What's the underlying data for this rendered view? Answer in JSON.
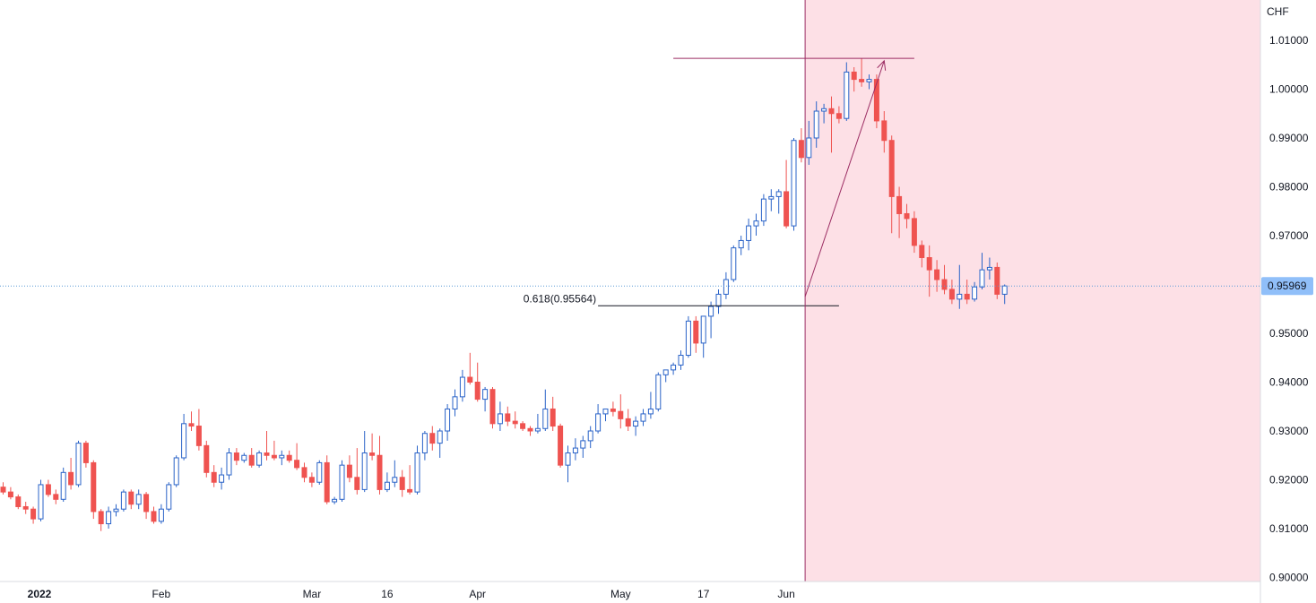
{
  "chart_data": {
    "type": "candlestick",
    "currency_label": "CHF",
    "y_range": [
      0.9,
      1.013
    ],
    "y_ticks": [
      "1.01000",
      "1.00000",
      "0.99000",
      "0.98000",
      "0.97000",
      "0.96000",
      "0.95000",
      "0.94000",
      "0.93000",
      "0.92000",
      "0.91000",
      "0.90000"
    ],
    "x_ticks": [
      {
        "label": "2022",
        "index": 0,
        "bold": true
      },
      {
        "label": "Feb",
        "index": 21
      },
      {
        "label": "Mar",
        "index": 41
      },
      {
        "label": "16",
        "index": 51
      },
      {
        "label": "Apr",
        "index": 63
      },
      {
        "label": "May",
        "index": 82
      },
      {
        "label": "17",
        "index": 93
      },
      {
        "label": "Jun",
        "index": 104
      }
    ],
    "current_price": "0.95969",
    "current_price_value": 0.95969,
    "fib_label": "0.618(0.95564)",
    "fib_level": 0.95564,
    "fib_start_index": 79,
    "fib_end_index": 111,
    "top_level": 1.0063,
    "top_start_index": 89,
    "top_end_index": 121,
    "arrow_start": {
      "index": 106.5,
      "price": 0.9575
    },
    "arrow_end": {
      "index": 117,
      "price": 1.0058
    },
    "zone_start_index": 106.5,
    "colors": {
      "up_border": "#2a63c8",
      "up_fill": "#ffffff",
      "down": "#ef5350",
      "drawing": "#9c2d63",
      "zone": "#fde0e6",
      "fib_line": "#131722",
      "price_line": "#5b9bd5",
      "badge": "#90bff9"
    },
    "candles": [
      [
        0.9185,
        0.9195,
        0.917,
        0.9175
      ],
      [
        0.9175,
        0.9185,
        0.916,
        0.9165
      ],
      [
        0.9165,
        0.917,
        0.914,
        0.9145
      ],
      [
        0.9145,
        0.9155,
        0.913,
        0.914
      ],
      [
        0.914,
        0.9145,
        0.911,
        0.912
      ],
      [
        0.912,
        0.92,
        0.9115,
        0.919
      ],
      [
        0.919,
        0.92,
        0.9165,
        0.917
      ],
      [
        0.917,
        0.918,
        0.915,
        0.916
      ],
      [
        0.916,
        0.9225,
        0.9155,
        0.9215
      ],
      [
        0.9215,
        0.9245,
        0.918,
        0.919
      ],
      [
        0.919,
        0.928,
        0.9185,
        0.9275
      ],
      [
        0.9275,
        0.928,
        0.9225,
        0.9235
      ],
      [
        0.9235,
        0.924,
        0.912,
        0.9135
      ],
      [
        0.9135,
        0.914,
        0.9095,
        0.911
      ],
      [
        0.911,
        0.9145,
        0.91,
        0.9135
      ],
      [
        0.9135,
        0.915,
        0.9125,
        0.914
      ],
      [
        0.914,
        0.918,
        0.9135,
        0.9175
      ],
      [
        0.9175,
        0.918,
        0.914,
        0.915
      ],
      [
        0.915,
        0.918,
        0.914,
        0.917
      ],
      [
        0.917,
        0.9175,
        0.912,
        0.9135
      ],
      [
        0.9135,
        0.9145,
        0.911,
        0.9115
      ],
      [
        0.9115,
        0.915,
        0.911,
        0.914
      ],
      [
        0.914,
        0.9195,
        0.9135,
        0.919
      ],
      [
        0.919,
        0.925,
        0.9185,
        0.9245
      ],
      [
        0.9245,
        0.9335,
        0.924,
        0.9315
      ],
      [
        0.9315,
        0.934,
        0.93,
        0.931
      ],
      [
        0.931,
        0.9345,
        0.926,
        0.927
      ],
      [
        0.927,
        0.928,
        0.9205,
        0.9215
      ],
      [
        0.9215,
        0.923,
        0.9185,
        0.9195
      ],
      [
        0.9195,
        0.9225,
        0.918,
        0.921
      ],
      [
        0.921,
        0.9265,
        0.92,
        0.9255
      ],
      [
        0.9255,
        0.9265,
        0.923,
        0.924
      ],
      [
        0.924,
        0.9255,
        0.9235,
        0.925
      ],
      [
        0.925,
        0.9265,
        0.9225,
        0.923
      ],
      [
        0.923,
        0.926,
        0.9225,
        0.9255
      ],
      [
        0.9255,
        0.93,
        0.924,
        0.925
      ],
      [
        0.925,
        0.928,
        0.924,
        0.9245
      ],
      [
        0.9245,
        0.926,
        0.923,
        0.925
      ],
      [
        0.925,
        0.926,
        0.9235,
        0.924
      ],
      [
        0.924,
        0.9275,
        0.922,
        0.9225
      ],
      [
        0.9225,
        0.9235,
        0.9195,
        0.9205
      ],
      [
        0.9205,
        0.9215,
        0.9185,
        0.9195
      ],
      [
        0.9195,
        0.924,
        0.919,
        0.9235
      ],
      [
        0.9235,
        0.925,
        0.915,
        0.9155
      ],
      [
        0.9155,
        0.9165,
        0.915,
        0.916
      ],
      [
        0.916,
        0.924,
        0.9155,
        0.923
      ],
      [
        0.923,
        0.925,
        0.9195,
        0.9205
      ],
      [
        0.9205,
        0.9265,
        0.917,
        0.918
      ],
      [
        0.918,
        0.93,
        0.9175,
        0.9255
      ],
      [
        0.9255,
        0.9295,
        0.924,
        0.925
      ],
      [
        0.925,
        0.929,
        0.917,
        0.918
      ],
      [
        0.918,
        0.9215,
        0.9175,
        0.9195
      ],
      [
        0.9195,
        0.924,
        0.9185,
        0.9205
      ],
      [
        0.9205,
        0.922,
        0.9165,
        0.918
      ],
      [
        0.918,
        0.923,
        0.917,
        0.9175
      ],
      [
        0.9175,
        0.927,
        0.917,
        0.9255
      ],
      [
        0.9255,
        0.93,
        0.924,
        0.9295
      ],
      [
        0.9295,
        0.931,
        0.926,
        0.9275
      ],
      [
        0.9275,
        0.9305,
        0.9245,
        0.93
      ],
      [
        0.93,
        0.9355,
        0.928,
        0.9345
      ],
      [
        0.9345,
        0.9385,
        0.933,
        0.937
      ],
      [
        0.937,
        0.9425,
        0.936,
        0.941
      ],
      [
        0.941,
        0.946,
        0.9395,
        0.94
      ],
      [
        0.94,
        0.944,
        0.936,
        0.9365
      ]
    ],
    "candles_b": [
      [
        0.9365,
        0.939,
        0.934,
        0.9385
      ],
      [
        0.9385,
        0.939,
        0.9305,
        0.9315
      ],
      [
        0.9315,
        0.936,
        0.93,
        0.9335
      ],
      [
        0.9335,
        0.935,
        0.931,
        0.932
      ],
      [
        0.932,
        0.934,
        0.9305,
        0.9315
      ],
      [
        0.9315,
        0.932,
        0.93,
        0.9305
      ],
      [
        0.9305,
        0.931,
        0.929,
        0.93
      ],
      [
        0.93,
        0.9335,
        0.9295,
        0.9305
      ],
      [
        0.9305,
        0.9385,
        0.93,
        0.9345
      ],
      [
        0.9345,
        0.937,
        0.93,
        0.931
      ],
      [
        0.931,
        0.9315,
        0.9225,
        0.923
      ],
      [
        0.923,
        0.927,
        0.9195,
        0.9255
      ],
      [
        0.9255,
        0.9285,
        0.924,
        0.9265
      ],
      [
        0.9265,
        0.929,
        0.9245,
        0.928
      ],
      [
        0.928,
        0.931,
        0.9265,
        0.93
      ],
      [
        0.93,
        0.9355,
        0.9295,
        0.9335
      ],
      [
        0.9335,
        0.9345,
        0.932,
        0.9345
      ],
      [
        0.9345,
        0.936,
        0.933,
        0.934
      ],
      [
        0.934,
        0.9375,
        0.9305,
        0.9325
      ],
      [
        0.9325,
        0.9345,
        0.93,
        0.931
      ],
      [
        0.931,
        0.933,
        0.929,
        0.932
      ],
      [
        0.932,
        0.9345,
        0.931,
        0.9335
      ],
      [
        0.9335,
        0.938,
        0.9325,
        0.9345
      ],
      [
        0.9345,
        0.942,
        0.934,
        0.9415
      ],
      [
        0.9415,
        0.9425,
        0.94,
        0.9425
      ],
      [
        0.9425,
        0.944,
        0.9415,
        0.9435
      ],
      [
        0.9435,
        0.9465,
        0.9425,
        0.9455
      ],
      [
        0.9455,
        0.9535,
        0.945,
        0.9525
      ],
      [
        0.9525,
        0.9535,
        0.946,
        0.948
      ],
      [
        0.948,
        0.9535,
        0.945,
        0.9535
      ],
      [
        0.9535,
        0.9565,
        0.949,
        0.9555
      ],
      [
        0.9555,
        0.959,
        0.954,
        0.958
      ],
      [
        0.958,
        0.9625,
        0.957,
        0.961
      ],
      [
        0.961,
        0.968,
        0.9605,
        0.9675
      ],
      [
        0.9675,
        0.97,
        0.966,
        0.969
      ],
      [
        0.969,
        0.9735,
        0.967,
        0.972
      ],
      [
        0.972,
        0.9745,
        0.97,
        0.973
      ],
      [
        0.973,
        0.9785,
        0.972,
        0.9775
      ],
      [
        0.9775,
        0.9795,
        0.975,
        0.978
      ],
      [
        0.978,
        0.9795,
        0.9745,
        0.979
      ],
      [
        0.979,
        0.9855,
        0.9715,
        0.972
      ],
      [
        0.972,
        0.99,
        0.971,
        0.9895
      ],
      [
        0.9895,
        0.992,
        0.985,
        0.986
      ],
      [
        0.986,
        0.9935,
        0.9845,
        0.99
      ],
      [
        0.99,
        0.9975,
        0.988,
        0.9955
      ],
      [
        0.9955,
        0.997,
        0.993,
        0.996
      ],
      [
        0.996,
        0.9985,
        0.987,
        0.995
      ],
      [
        0.995,
        0.9965,
        0.993,
        0.994
      ],
      [
        0.994,
        1.0055,
        0.9935,
        1.0035
      ],
      [
        1.0035,
        1.0045,
        0.9995,
        1.002
      ],
      [
        1.002,
        1.0063,
        1.0005,
        1.0015
      ],
      [
        1.0015,
        1.003,
        1.0,
        1.002
      ],
      [
        1.002,
        1.003,
        0.992,
        0.9935
      ],
      [
        0.9935,
        0.9955,
        0.987,
        0.9895
      ],
      [
        0.9895,
        0.9905,
        0.9705,
        0.978
      ],
      [
        0.978,
        0.98,
        0.9695,
        0.9745
      ],
      [
        0.9745,
        0.9765,
        0.9715,
        0.9735
      ],
      [
        0.9735,
        0.975,
        0.9665,
        0.968
      ],
      [
        0.968,
        0.969,
        0.9635,
        0.9655
      ],
      [
        0.9655,
        0.968,
        0.9575,
        0.963
      ],
      [
        0.963,
        0.965,
        0.9585,
        0.961
      ],
      [
        0.961,
        0.964,
        0.958,
        0.959
      ],
      [
        0.959,
        0.961,
        0.956,
        0.957
      ],
      [
        0.957,
        0.964,
        0.955,
        0.958
      ],
      [
        0.958,
        0.961,
        0.956,
        0.957
      ],
      [
        0.957,
        0.9605,
        0.9565,
        0.9595
      ],
      [
        0.9595,
        0.9665,
        0.959,
        0.963
      ],
      [
        0.963,
        0.9655,
        0.961,
        0.9635
      ],
      [
        0.9635,
        0.9645,
        0.957,
        0.958
      ],
      [
        0.958,
        0.96,
        0.956,
        0.9597
      ]
    ]
  }
}
